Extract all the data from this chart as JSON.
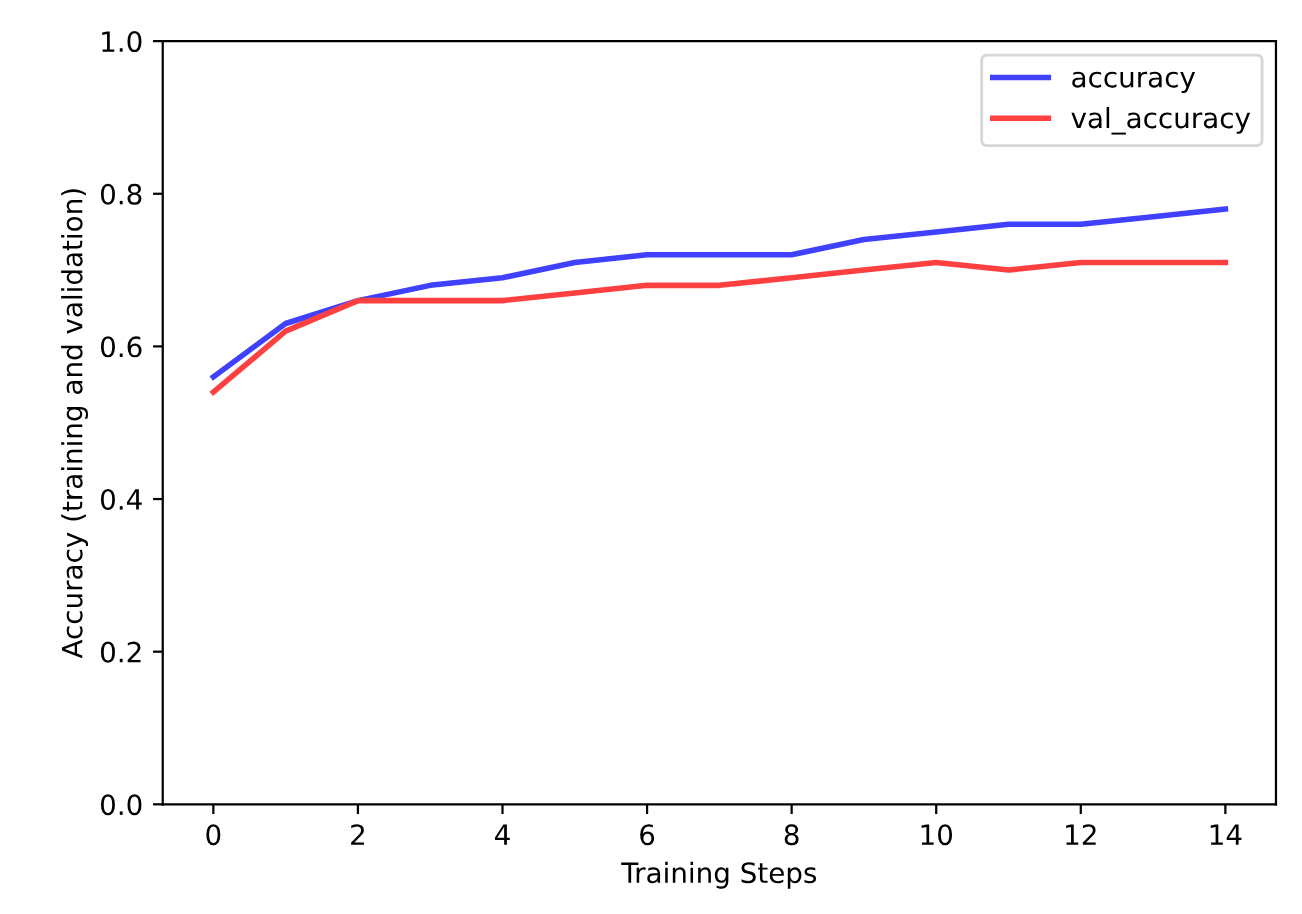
{
  "chart_data": {
    "type": "line",
    "xlabel": "Training Steps",
    "ylabel": "Accuracy (training and validation)",
    "x": [
      0,
      1,
      2,
      3,
      4,
      5,
      6,
      7,
      8,
      9,
      10,
      11,
      12,
      13,
      14
    ],
    "series": [
      {
        "name": "accuracy",
        "color": "#4040ff",
        "values": [
          0.56,
          0.63,
          0.66,
          0.68,
          0.69,
          0.71,
          0.72,
          0.72,
          0.72,
          0.74,
          0.75,
          0.76,
          0.76,
          0.77,
          0.78
        ]
      },
      {
        "name": "val_accuracy",
        "color": "#ff4040",
        "values": [
          0.54,
          0.62,
          0.66,
          0.66,
          0.66,
          0.67,
          0.68,
          0.68,
          0.69,
          0.7,
          0.71,
          0.7,
          0.71,
          0.71,
          0.71
        ]
      }
    ],
    "xlim": [
      -0.7,
      14.7
    ],
    "xticks": [
      0,
      2,
      4,
      6,
      8,
      10,
      12,
      14
    ],
    "ylim": [
      0.0,
      1.0
    ],
    "yticks": [
      {
        "value": 0.0,
        "label": "0.0"
      },
      {
        "value": 0.2,
        "label": "0.2"
      },
      {
        "value": 0.4,
        "label": "0.4"
      },
      {
        "value": 0.6,
        "label": "0.6"
      },
      {
        "value": 0.8,
        "label": "0.8"
      },
      {
        "value": 1.0,
        "label": "1.0"
      }
    ],
    "legend": "top right",
    "grid": false,
    "marker": "none",
    "line_style": "solid"
  }
}
